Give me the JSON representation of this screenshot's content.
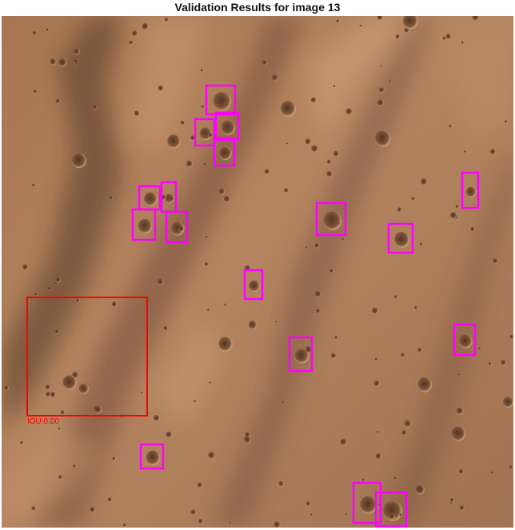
{
  "title": "Validation Results for image 13",
  "colors": {
    "prediction_box": "#ff00ff",
    "ground_truth_box": "#ff0000",
    "terrain_base": "#b07a52",
    "terrain_light": "#d8a57a",
    "terrain_dark": "#5e3c26"
  },
  "image": {
    "description_icon": "mars-terrain-image"
  },
  "ground_truth": [
    {
      "label": "IOU:0.00"
    }
  ]
}
